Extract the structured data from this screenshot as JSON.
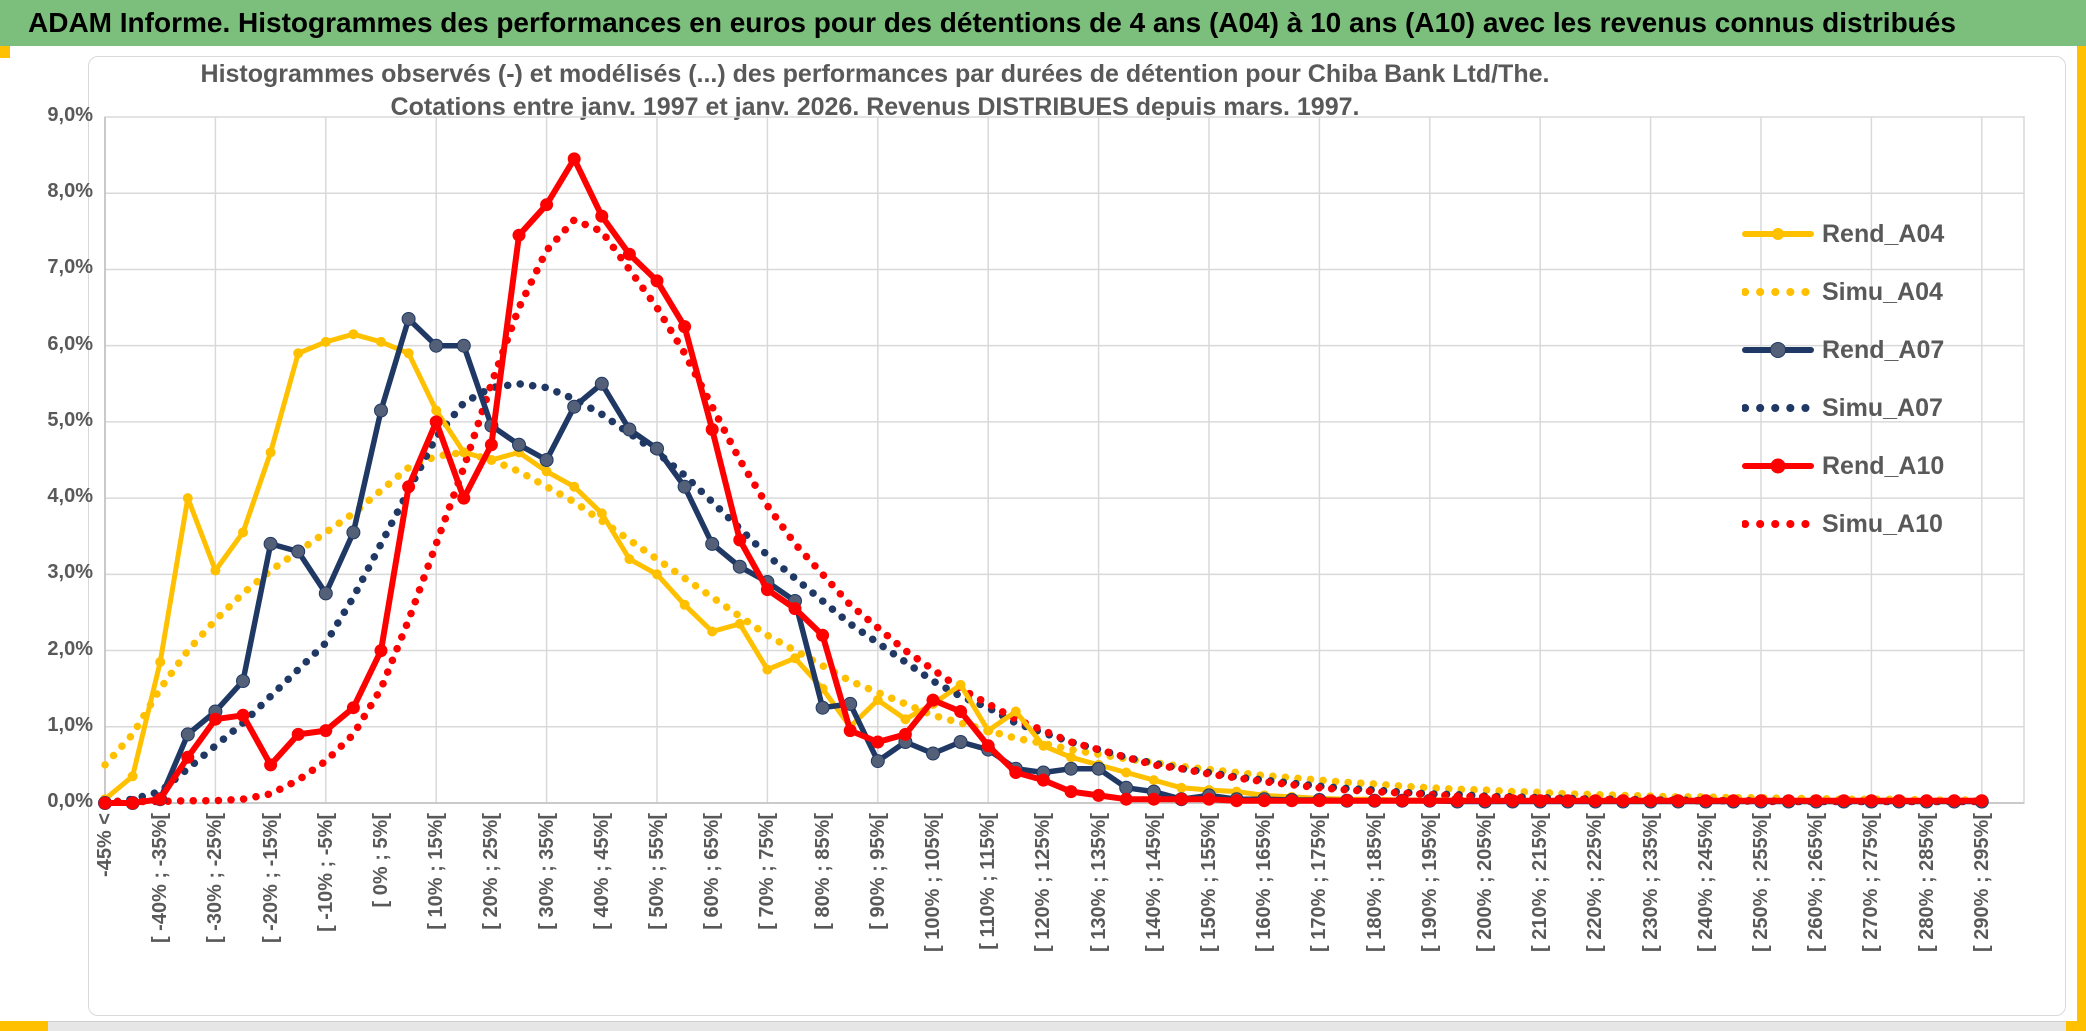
{
  "banner": {
    "title": "ADAM Informe. Histogrammes des performances en euros pour des détentions de 4 ans (A04) à 10 ans (A10) avec les revenus connus distribués"
  },
  "chart_title": {
    "line1": "Histogrammes observés (-) et modélisés (...) des performances par durées de détention pour Chiba Bank Ltd/The.",
    "line2": "Cotations entre janv. 1997 et janv. 2026. Revenus DISTRIBUES depuis mars. 1997."
  },
  "colors": {
    "gold": "#ffc000",
    "navy": "#1f3864",
    "navy_marker": "#546077",
    "red": "#ff0000",
    "gridline": "#d9d9d9",
    "axis_text": "#595959",
    "banner_green": "#7cbe7c",
    "strip_gray": "#e7e6e6"
  },
  "chart_data": {
    "type": "line",
    "title": "Histogrammes observés (-) et modélisés (...) des performances par durées de détention pour Chiba Bank Ltd/The. Cotations entre janv. 1997 et janv. 2026. Revenus DISTRIBUES depuis mars. 1997.",
    "xlabel": "",
    "ylabel": "",
    "ylim": [
      0,
      9
    ],
    "y_tick_labels": [
      "9,0%",
      "8,0%",
      "7,0%",
      "6,0%",
      "5,0%",
      "4,0%",
      "3,0%",
      "2,0%",
      "1,0%",
      "0,0%"
    ],
    "grid": true,
    "legend_position": "right",
    "categories": [
      "-45% <",
      "",
      "[ -40% ; -35%[",
      "",
      "[ -30% ; -25%[",
      "",
      "[ -20% ; -15%[",
      "",
      "[ -10% ; -5%[",
      "",
      "[ 0% ; 5%[",
      "",
      "[ 10% ; 15%[",
      "",
      "[ 20% ; 25%[",
      "",
      "[ 30% ; 35%[",
      "",
      "[ 40% ; 45%[",
      "",
      "[ 50% ; 55%[",
      "",
      "[ 60% ; 65%[",
      "",
      "[ 70% ; 75%[",
      "",
      "[ 80% ; 85%[",
      "",
      "[ 90% ; 95%[",
      "",
      "[ 100% ; 105%[",
      "",
      "[ 110% ; 115%[",
      "",
      "[ 120% ; 125%[",
      "",
      "[ 130% ; 135%[",
      "",
      "[ 140% ; 145%[",
      "",
      "[ 150% ; 155%[",
      "",
      "[ 160% ; 165%[",
      "",
      "[ 170% ; 175%[",
      "",
      "[ 180% ; 185%[",
      "",
      "[ 190% ; 195%[",
      "",
      "[ 200% ; 205%[",
      "",
      "[ 210% ; 215%[",
      "",
      "[ 220% ; 225%[",
      "",
      "[ 230% ; 235%[",
      "",
      "[ 240% ; 245%[",
      "",
      "[ 250% ; 255%[",
      "",
      "[ 260% ; 265%[",
      "",
      "[ 270% ; 275%[",
      "",
      "[ 280% ; 285%[",
      "",
      "[ 290% ; 295%["
    ],
    "series": [
      {
        "name": "Rend_A04",
        "color": "#ffc000",
        "style": "solid",
        "marker": true,
        "values": [
          0.05,
          0.35,
          1.85,
          4.0,
          3.05,
          3.55,
          4.6,
          5.9,
          6.05,
          6.15,
          6.05,
          5.9,
          5.15,
          4.6,
          4.5,
          4.6,
          4.35,
          4.15,
          3.8,
          3.2,
          3.0,
          2.6,
          2.25,
          2.35,
          1.75,
          1.9,
          1.5,
          1.0,
          1.35,
          1.1,
          1.3,
          1.55,
          0.95,
          1.2,
          0.75,
          0.6,
          0.5,
          0.4,
          0.3,
          0.2,
          0.17,
          0.15,
          0.1,
          0.08,
          0.06,
          0.05,
          0.05,
          0.04,
          0.04,
          0.04,
          0.03,
          0.03,
          0.03,
          0.03,
          0.03,
          0.03,
          0.02,
          0.02,
          0.02,
          0.02,
          0.02,
          0.02,
          0.02,
          0.02,
          0.02,
          0.02,
          0.02,
          0.02,
          0.02
        ]
      },
      {
        "name": "Simu_A04",
        "color": "#ffc000",
        "style": "dotted",
        "marker": false,
        "values": [
          0.5,
          0.9,
          1.5,
          2.0,
          2.4,
          2.75,
          3.05,
          3.3,
          3.55,
          3.8,
          4.1,
          4.4,
          4.55,
          4.6,
          4.5,
          4.35,
          4.15,
          3.95,
          3.7,
          3.45,
          3.2,
          2.95,
          2.7,
          2.45,
          2.2,
          2.0,
          1.8,
          1.6,
          1.45,
          1.3,
          1.15,
          1.05,
          0.95,
          0.85,
          0.78,
          0.7,
          0.64,
          0.58,
          0.53,
          0.48,
          0.44,
          0.4,
          0.36,
          0.33,
          0.3,
          0.27,
          0.25,
          0.22,
          0.2,
          0.18,
          0.17,
          0.15,
          0.14,
          0.12,
          0.11,
          0.1,
          0.09,
          0.08,
          0.08,
          0.07,
          0.07,
          0.06,
          0.06,
          0.05,
          0.05,
          0.05,
          0.04,
          0.04,
          0.04
        ]
      },
      {
        "name": "Rend_A07",
        "color": "#1f3864",
        "style": "solid",
        "marker": true,
        "values": [
          0.0,
          0.0,
          0.05,
          0.9,
          1.2,
          1.6,
          3.4,
          3.3,
          2.75,
          3.55,
          5.15,
          6.35,
          6.0,
          6.0,
          4.95,
          4.7,
          4.5,
          5.2,
          5.5,
          4.9,
          4.65,
          4.15,
          3.4,
          3.1,
          2.9,
          2.65,
          1.25,
          1.3,
          0.55,
          0.8,
          0.65,
          0.8,
          0.7,
          0.45,
          0.4,
          0.45,
          0.45,
          0.2,
          0.15,
          0.05,
          0.1,
          0.05,
          0.05,
          0.04,
          0.04,
          0.03,
          0.03,
          0.03,
          0.03,
          0.02,
          0.02,
          0.02,
          0.02,
          0.02,
          0.02,
          0.02,
          0.02,
          0.02,
          0.02,
          0.02,
          0.02,
          0.02,
          0.02,
          0.02,
          0.02,
          0.02,
          0.02,
          0.02,
          0.02
        ]
      },
      {
        "name": "Simu_A07",
        "color": "#1f3864",
        "style": "dotted",
        "marker": false,
        "values": [
          0.0,
          0.05,
          0.15,
          0.45,
          0.75,
          1.05,
          1.4,
          1.75,
          2.1,
          2.7,
          3.4,
          4.1,
          4.8,
          5.25,
          5.45,
          5.5,
          5.45,
          5.3,
          5.1,
          4.85,
          4.6,
          4.3,
          3.95,
          3.6,
          3.25,
          2.95,
          2.65,
          2.35,
          2.1,
          1.85,
          1.6,
          1.4,
          1.25,
          1.05,
          0.92,
          0.8,
          0.7,
          0.6,
          0.52,
          0.45,
          0.4,
          0.34,
          0.3,
          0.26,
          0.22,
          0.19,
          0.17,
          0.14,
          0.12,
          0.11,
          0.09,
          0.08,
          0.07,
          0.06,
          0.05,
          0.05,
          0.04,
          0.04,
          0.03,
          0.03,
          0.03,
          0.02,
          0.02,
          0.02,
          0.02,
          0.02,
          0.02,
          0.02,
          0.02
        ]
      },
      {
        "name": "Rend_A10",
        "color": "#ff0000",
        "style": "solid",
        "marker": true,
        "values": [
          0.0,
          0.0,
          0.05,
          0.6,
          1.1,
          1.15,
          0.5,
          0.9,
          0.95,
          1.25,
          2.0,
          4.15,
          5.0,
          4.0,
          4.7,
          7.45,
          7.85,
          8.45,
          7.7,
          7.2,
          6.85,
          6.25,
          4.9,
          3.45,
          2.8,
          2.55,
          2.2,
          0.95,
          0.8,
          0.9,
          1.35,
          1.2,
          0.75,
          0.4,
          0.3,
          0.15,
          0.1,
          0.05,
          0.05,
          0.05,
          0.05,
          0.03,
          0.03,
          0.03,
          0.03,
          0.03,
          0.03,
          0.03,
          0.03,
          0.03,
          0.03,
          0.03,
          0.03,
          0.03,
          0.03,
          0.03,
          0.03,
          0.03,
          0.03,
          0.03,
          0.03,
          0.03,
          0.03,
          0.03,
          0.03,
          0.03,
          0.03,
          0.03,
          0.03
        ]
      },
      {
        "name": "Simu_A10",
        "color": "#ff0000",
        "style": "dotted",
        "marker": false,
        "values": [
          0.02,
          0.02,
          0.02,
          0.03,
          0.03,
          0.05,
          0.12,
          0.3,
          0.55,
          0.9,
          1.5,
          2.4,
          3.4,
          4.4,
          5.5,
          6.5,
          7.25,
          7.65,
          7.5,
          7.0,
          6.5,
          5.9,
          5.2,
          4.5,
          3.9,
          3.4,
          3.0,
          2.6,
          2.3,
          2.0,
          1.75,
          1.5,
          1.3,
          1.1,
          0.95,
          0.8,
          0.7,
          0.6,
          0.5,
          0.45,
          0.38,
          0.33,
          0.28,
          0.24,
          0.2,
          0.17,
          0.15,
          0.13,
          0.11,
          0.09,
          0.08,
          0.07,
          0.06,
          0.05,
          0.05,
          0.04,
          0.04,
          0.03,
          0.03,
          0.03,
          0.02,
          0.02,
          0.02,
          0.02,
          0.02,
          0.02,
          0.02,
          0.02,
          0.02
        ]
      }
    ]
  }
}
